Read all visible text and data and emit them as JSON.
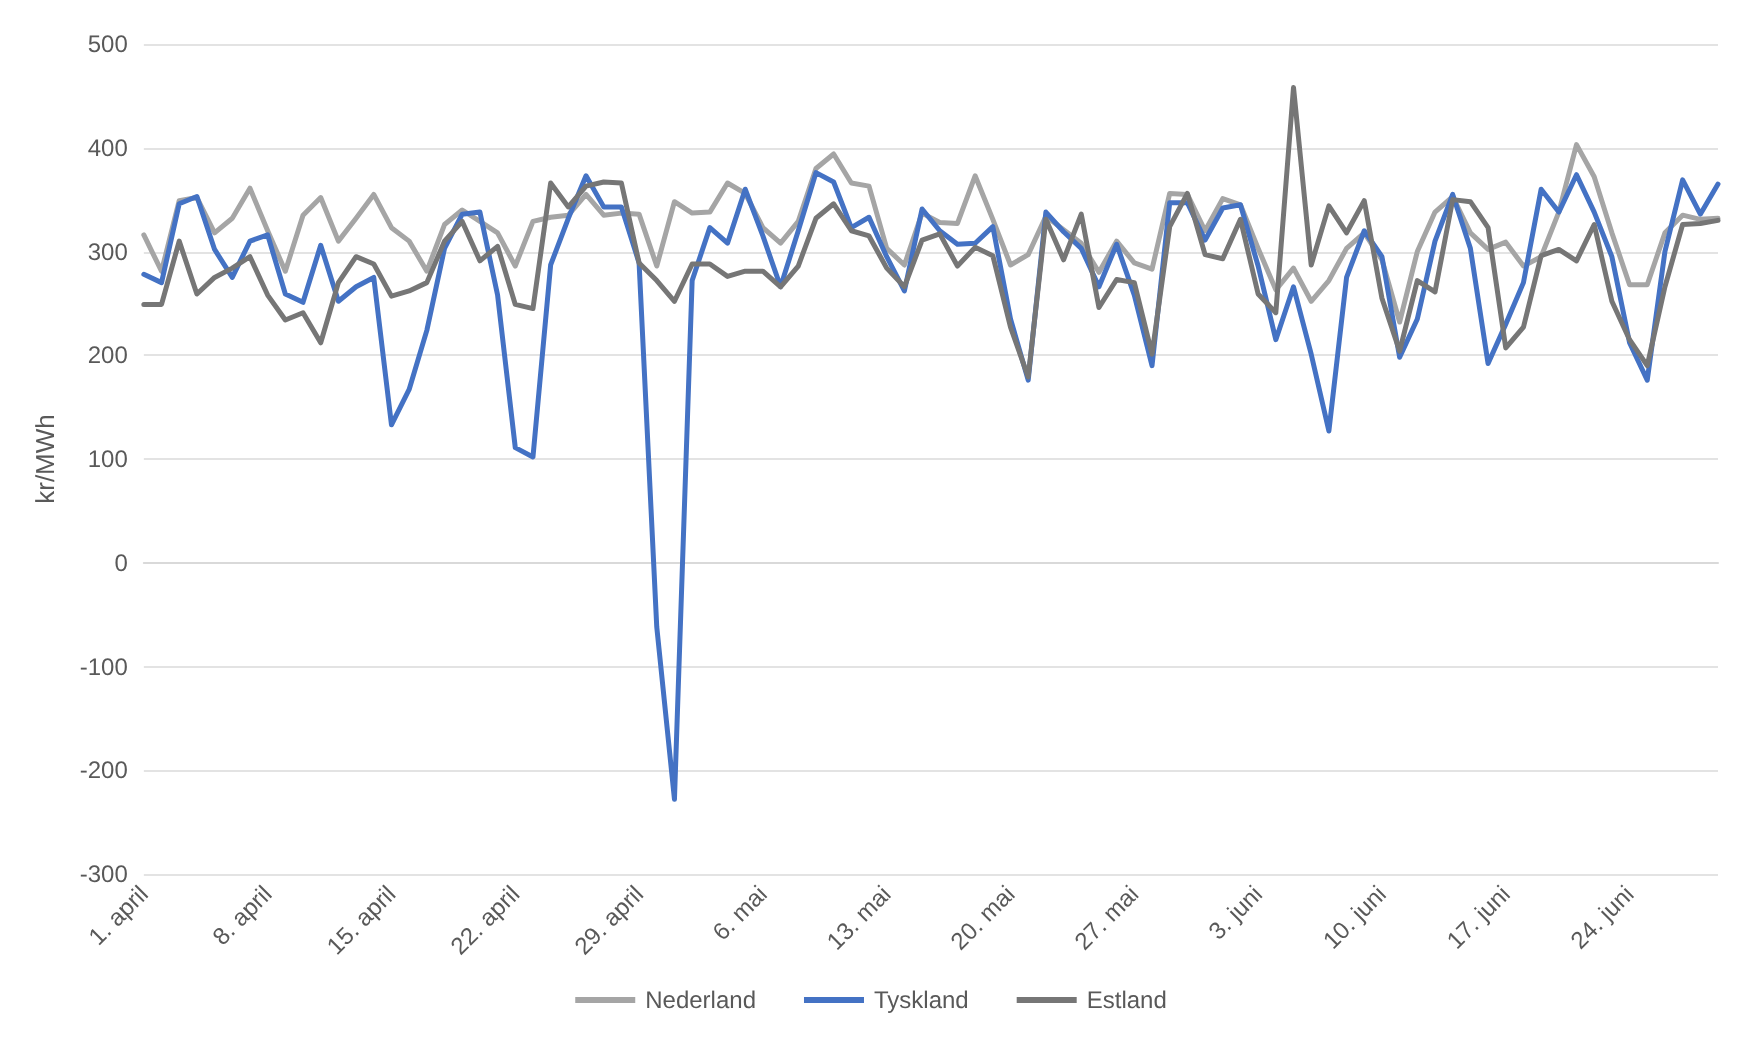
{
  "chart_data": {
    "type": "line",
    "ylabel": "kr/MWh",
    "categories": [
      "1. april",
      null,
      null,
      null,
      null,
      null,
      null,
      "8. april",
      null,
      null,
      null,
      null,
      null,
      null,
      "15. april",
      null,
      null,
      null,
      null,
      null,
      null,
      "22. april",
      null,
      null,
      null,
      null,
      null,
      null,
      "29. april",
      null,
      null,
      null,
      null,
      null,
      null,
      "6. mai",
      null,
      null,
      null,
      null,
      null,
      null,
      "13. mai",
      null,
      null,
      null,
      null,
      null,
      null,
      "20. mai",
      null,
      null,
      null,
      null,
      null,
      null,
      "27. mai",
      null,
      null,
      null,
      null,
      null,
      null,
      "3. juni",
      null,
      null,
      null,
      null,
      null,
      null,
      "10. juni",
      null,
      null,
      null,
      null,
      null,
      null,
      "17. juni",
      null,
      null,
      null,
      null,
      null,
      null,
      "24. juni",
      null,
      null,
      null,
      null,
      null
    ],
    "series": [
      {
        "name": "Nederland",
        "color": "#a5a5a5",
        "values": [
          316,
          281,
          349,
          352,
          318,
          332,
          361,
          320,
          281,
          335,
          352,
          310,
          332,
          355,
          323,
          310,
          281,
          326,
          340,
          329,
          318,
          286,
          329,
          333,
          335,
          355,
          335,
          337,
          336,
          286,
          348,
          337,
          338,
          366,
          356,
          323,
          308,
          329,
          380,
          394,
          366,
          363,
          303,
          287,
          337,
          328,
          327,
          373,
          331,
          287,
          297,
          334,
          321,
          308,
          280,
          310,
          289,
          283,
          356,
          355,
          320,
          351,
          345,
          303,
          263,
          284,
          252,
          272,
          303,
          318,
          292,
          232,
          300,
          338,
          353,
          318,
          302,
          309,
          286,
          295,
          338,
          403,
          372,
          318,
          268,
          268,
          318,
          335,
          331,
          332
        ]
      },
      {
        "name": "Tyskland",
        "color": "#4472c4",
        "values": [
          278,
          270,
          346,
          353,
          302,
          275,
          310,
          316,
          259,
          251,
          306,
          252,
          266,
          275,
          133,
          167,
          224,
          303,
          336,
          338,
          258,
          111,
          102,
          287,
          332,
          373,
          343,
          343,
          289,
          -62,
          -228,
          272,
          323,
          308,
          360,
          315,
          266,
          320,
          376,
          367,
          323,
          333,
          295,
          262,
          341,
          320,
          307,
          308,
          324,
          235,
          176,
          338,
          319,
          303,
          266,
          307,
          258,
          190,
          347,
          347,
          311,
          342,
          345,
          286,
          215,
          266,
          201,
          127,
          275,
          320,
          295,
          198,
          235,
          310,
          355,
          303,
          192,
          230,
          270,
          360,
          338,
          374,
          338,
          295,
          212,
          176,
          300,
          369,
          336,
          365
        ]
      },
      {
        "name": "Estland",
        "color": "#767676",
        "values": [
          249,
          249,
          310,
          259,
          275,
          284,
          295,
          258,
          234,
          241,
          212,
          270,
          295,
          288,
          257,
          262,
          270,
          310,
          329,
          291,
          305,
          249,
          245,
          366,
          343,
          363,
          367,
          366,
          289,
          272,
          252,
          288,
          288,
          276,
          281,
          281,
          266,
          286,
          332,
          346,
          320,
          315,
          284,
          266,
          311,
          317,
          286,
          304,
          296,
          227,
          179,
          331,
          292,
          336,
          246,
          273,
          270,
          201,
          324,
          356,
          297,
          293,
          331,
          259,
          241,
          458,
          287,
          344,
          318,
          349,
          255,
          204,
          272,
          261,
          350,
          348,
          323,
          207,
          227,
          296,
          302,
          291,
          326,
          252,
          215,
          190,
          266,
          326,
          327,
          330
        ]
      }
    ],
    "ylim": [
      -300,
      500
    ],
    "yticks": [
      -300,
      -200,
      -100,
      0,
      100,
      200,
      300,
      400,
      500
    ],
    "grid": "y",
    "legend": "bottom",
    "marker": "none",
    "line_style": "solid"
  }
}
